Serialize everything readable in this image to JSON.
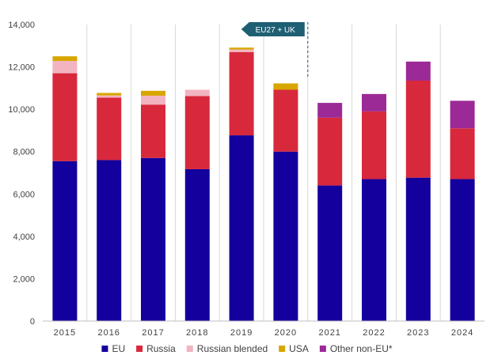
{
  "chart_data": {
    "type": "bar",
    "stacked": true,
    "title": "",
    "xlabel": "",
    "ylabel": "",
    "ylim": [
      0,
      14000
    ],
    "yticks": [
      0,
      2000,
      4000,
      6000,
      8000,
      10000,
      12000,
      14000
    ],
    "ytick_labels": [
      "0",
      "2,000",
      "4,000",
      "6,000",
      "8,000",
      "10,000",
      "12,000",
      "14,000"
    ],
    "grid": "vertical",
    "legend_position": "bottom",
    "categories": [
      "2015",
      "2016",
      "2017",
      "2018",
      "2019",
      "2020",
      "2021",
      "2022",
      "2023",
      "2024"
    ],
    "series": [
      {
        "name": "EU",
        "color": "#14009c",
        "values": [
          7550,
          7600,
          7700,
          7170,
          8770,
          8000,
          6400,
          6700,
          6770,
          6700
        ]
      },
      {
        "name": "Russia",
        "color": "#d8283c",
        "values": [
          4150,
          2950,
          2520,
          3450,
          3930,
          2920,
          3200,
          3200,
          4580,
          2400
        ]
      },
      {
        "name": "Russian blended",
        "color": "#f2b4c0",
        "values": [
          580,
          100,
          420,
          300,
          120,
          0,
          0,
          0,
          0,
          0
        ]
      },
      {
        "name": "USA",
        "color": "#d8a600",
        "values": [
          220,
          120,
          230,
          0,
          90,
          300,
          0,
          0,
          0,
          0
        ]
      },
      {
        "name": "Other non-EU*",
        "color": "#9c2a96",
        "values": [
          0,
          0,
          0,
          0,
          0,
          0,
          700,
          820,
          900,
          1300
        ]
      }
    ],
    "annotation": {
      "text": "EU27 + UK",
      "boundary_after": "2020"
    }
  }
}
